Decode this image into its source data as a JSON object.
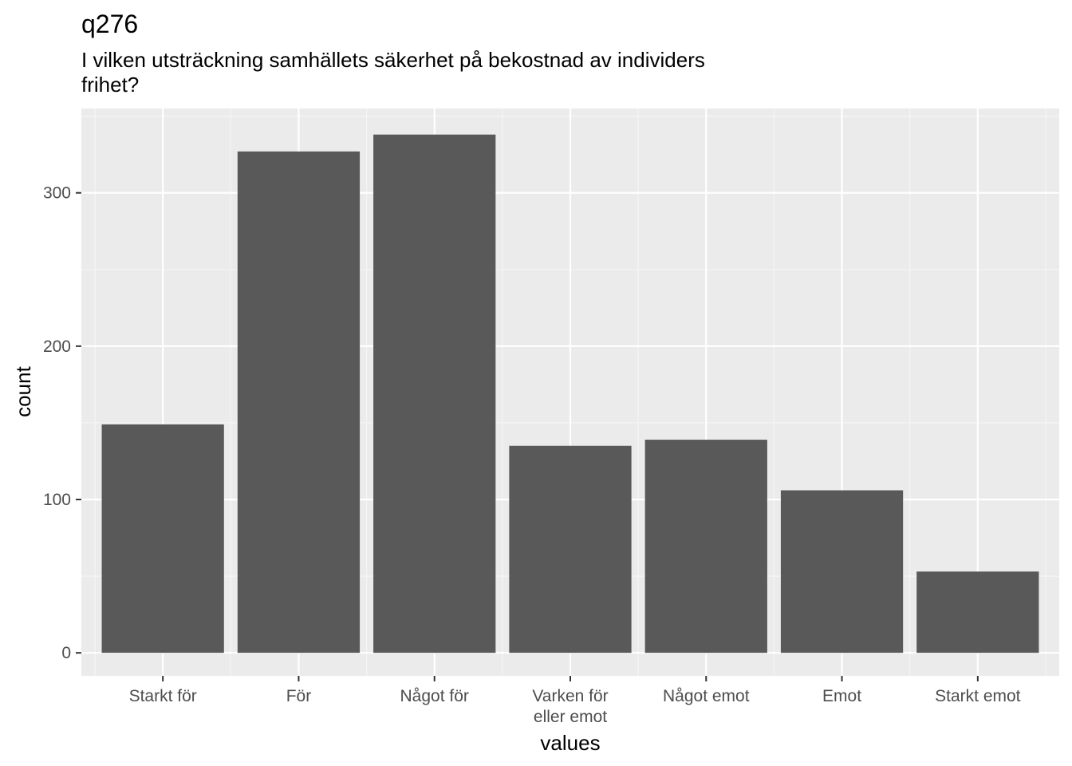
{
  "chart_data": {
    "type": "bar",
    "title": "q276",
    "subtitle_lines": [
      "I vilken utsträckning samhällets säkerhet på bekostnad av individers",
      "frihet?"
    ],
    "xlabel": "values",
    "ylabel": "count",
    "categories": [
      [
        "Starkt för"
      ],
      [
        "För"
      ],
      [
        "Något för"
      ],
      [
        "Varken för",
        "eller emot"
      ],
      [
        "Något emot"
      ],
      [
        "Emot"
      ],
      [
        "Starkt emot"
      ]
    ],
    "values": [
      149,
      327,
      338,
      135,
      139,
      106,
      53
    ],
    "ylim": [
      -15,
      355
    ],
    "yticks": [
      0,
      100,
      200,
      300
    ],
    "ytick_labels": [
      "0",
      "100",
      "200",
      "300"
    ],
    "grid": true,
    "colors": {
      "panel_background": "#ebebeb",
      "grid_major": "#ffffff",
      "grid_minor": "#f5f5f5",
      "bar_fill": "#595959",
      "tick": "#333333"
    }
  }
}
